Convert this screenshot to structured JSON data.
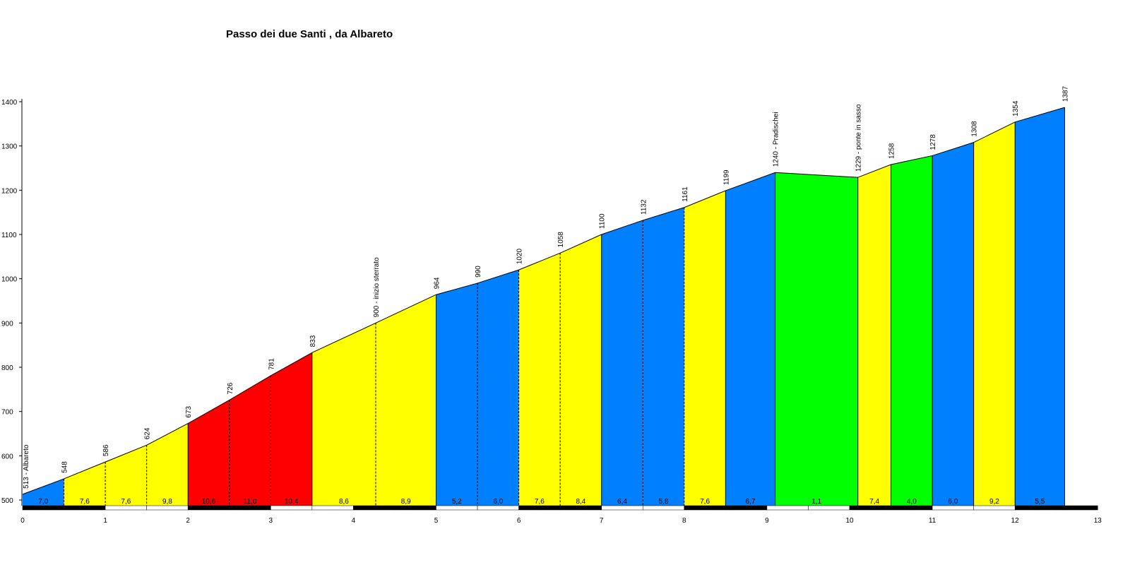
{
  "chart_data": {
    "type": "area",
    "title": "Passo dei due Santi , da Albareto",
    "xlabel": "",
    "ylabel": "",
    "xlim": [
      0,
      13
    ],
    "ylim": [
      480,
      1400
    ],
    "x_ticks": [
      0,
      1,
      2,
      3,
      4,
      5,
      6,
      7,
      8,
      9,
      10,
      11,
      12,
      13
    ],
    "x_tick_labels": [
      "0",
      "1",
      "2",
      "3",
      "4",
      "5",
      "6",
      "7",
      "8",
      "9",
      "10",
      "11",
      "12",
      "13"
    ],
    "y_ticks": [
      500,
      600,
      700,
      800,
      900,
      1000,
      1100,
      1200,
      1300,
      1400
    ],
    "y_tick_labels": [
      "500",
      "600",
      "700",
      "800",
      "900",
      "1000",
      "1100",
      "1200",
      "1300",
      "1400"
    ],
    "points": [
      {
        "x": 0,
        "y": 513,
        "label": "513 - Albareto"
      },
      {
        "x": 0.5,
        "y": 548,
        "label": "548"
      },
      {
        "x": 1.0,
        "y": 586,
        "label": "586"
      },
      {
        "x": 1.5,
        "y": 624,
        "label": "624"
      },
      {
        "x": 2.0,
        "y": 673,
        "label": "673"
      },
      {
        "x": 2.5,
        "y": 726,
        "label": "726"
      },
      {
        "x": 3.0,
        "y": 781,
        "label": "781"
      },
      {
        "x": 3.5,
        "y": 833,
        "label": "833"
      },
      {
        "x": 4.27,
        "y": 900,
        "label": "900 - inizio sterrato"
      },
      {
        "x": 5.0,
        "y": 964,
        "label": "964"
      },
      {
        "x": 5.5,
        "y": 990,
        "label": "990"
      },
      {
        "x": 6.0,
        "y": 1020,
        "label": "1020"
      },
      {
        "x": 6.5,
        "y": 1058,
        "label": "1058"
      },
      {
        "x": 7.0,
        "y": 1100,
        "label": "1100"
      },
      {
        "x": 7.5,
        "y": 1132,
        "label": "1132"
      },
      {
        "x": 8.0,
        "y": 1161,
        "label": "1161"
      },
      {
        "x": 8.5,
        "y": 1199,
        "label": "1199"
      },
      {
        "x": 9.1,
        "y": 1240,
        "label": "1240 - Pradischei"
      },
      {
        "x": 10.1,
        "y": 1229,
        "label": "1229 - ponte in sasso"
      },
      {
        "x": 10.5,
        "y": 1258,
        "label": "1258"
      },
      {
        "x": 11.0,
        "y": 1278,
        "label": "1278"
      },
      {
        "x": 11.5,
        "y": 1308,
        "label": "1308"
      },
      {
        "x": 12.0,
        "y": 1354,
        "label": "1354"
      },
      {
        "x": 12.6,
        "y": 1387,
        "label": "1387"
      }
    ],
    "segments": [
      {
        "grade": "7,0",
        "color": "#0080ff"
      },
      {
        "grade": "7,6",
        "color": "#ffff00"
      },
      {
        "grade": "7,6",
        "color": "#ffff00"
      },
      {
        "grade": "9,8",
        "color": "#ffff00"
      },
      {
        "grade": "10,6",
        "color": "#ff0000"
      },
      {
        "grade": "11,0",
        "color": "#ff0000"
      },
      {
        "grade": "10,4",
        "color": "#ff0000"
      },
      {
        "grade": "8,6",
        "color": "#ffff00"
      },
      {
        "grade": "8,9",
        "color": "#ffff00"
      },
      {
        "grade": "5,2",
        "color": "#0080ff"
      },
      {
        "grade": "6,0",
        "color": "#0080ff"
      },
      {
        "grade": "7,6",
        "color": "#ffff00"
      },
      {
        "grade": "8,4",
        "color": "#ffff00"
      },
      {
        "grade": "6,4",
        "color": "#0080ff"
      },
      {
        "grade": "5,8",
        "color": "#0080ff"
      },
      {
        "grade": "7,6",
        "color": "#ffff00"
      },
      {
        "grade": "6,7",
        "color": "#0080ff"
      },
      {
        "grade": "1,1",
        "color": "#00ff00"
      },
      {
        "grade": "7,4",
        "color": "#ffff00"
      },
      {
        "grade": "4,0",
        "color": "#00ff00"
      },
      {
        "grade": "6,0",
        "color": "#0080ff"
      },
      {
        "grade": "9,2",
        "color": "#ffff00"
      },
      {
        "grade": "5,5",
        "color": "#0080ff"
      }
    ],
    "solid_boundaries_x": [
      2.0,
      3.5,
      5.0,
      7.0,
      8.5,
      9.1,
      10.1,
      10.5,
      11.0,
      11.5,
      12.0
    ],
    "grid": false,
    "legend": "none"
  }
}
